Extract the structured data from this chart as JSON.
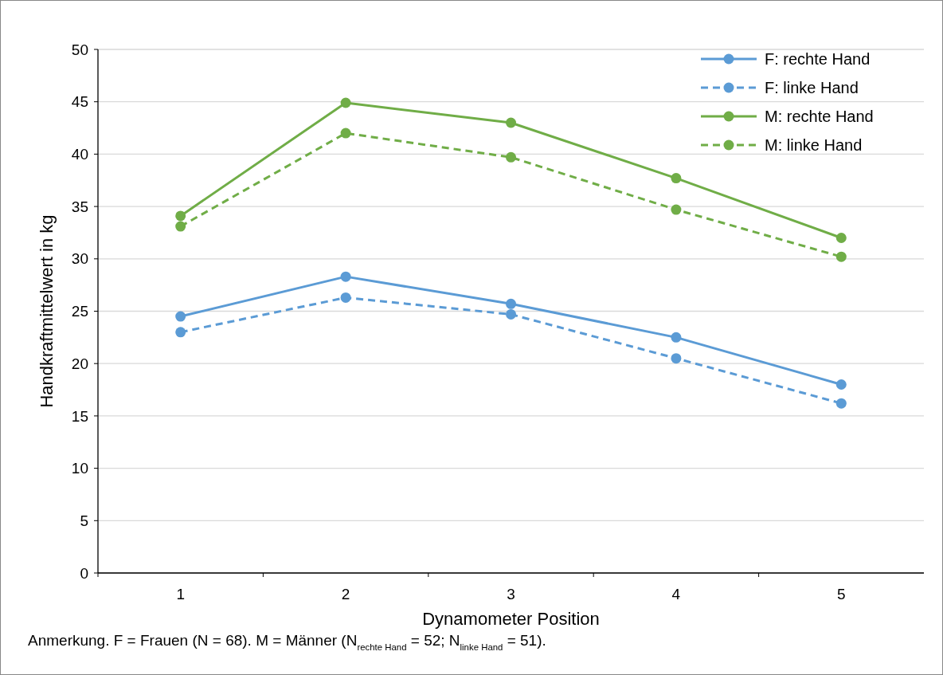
{
  "chart_data": {
    "type": "line",
    "categories": [
      "1",
      "2",
      "3",
      "4",
      "5"
    ],
    "xlabel": "Dynamometer Position",
    "ylabel": "Handkraftmittelwert in kg",
    "ylim": [
      0,
      50
    ],
    "yticks": [
      0,
      5,
      10,
      15,
      20,
      25,
      30,
      35,
      40,
      45,
      50
    ],
    "grid": "y",
    "legend": "top right",
    "marker": "circle",
    "series": [
      {
        "name": "F: rechte Hand",
        "color": "#5b9bd5",
        "line_style": "solid",
        "values": [
          24.5,
          28.3,
          25.7,
          22.5,
          18.0
        ]
      },
      {
        "name": "F: linke Hand",
        "color": "#5b9bd5",
        "line_style": "dashed",
        "values": [
          23.0,
          26.3,
          24.7,
          20.5,
          16.2
        ]
      },
      {
        "name": "M: rechte Hand",
        "color": "#70ad47",
        "line_style": "solid",
        "values": [
          34.1,
          44.9,
          43.0,
          37.7,
          32.0
        ]
      },
      {
        "name": "M: linke Hand",
        "color": "#70ad47",
        "line_style": "dashed",
        "values": [
          33.1,
          42.0,
          39.7,
          34.7,
          30.2
        ]
      }
    ],
    "annotations": [
      "Anmerkung. F = Frauen (N = 68). M = Männer (N$_{rechte Hand}$ = 52; N$_{linke Hand}$ = 51)."
    ]
  }
}
